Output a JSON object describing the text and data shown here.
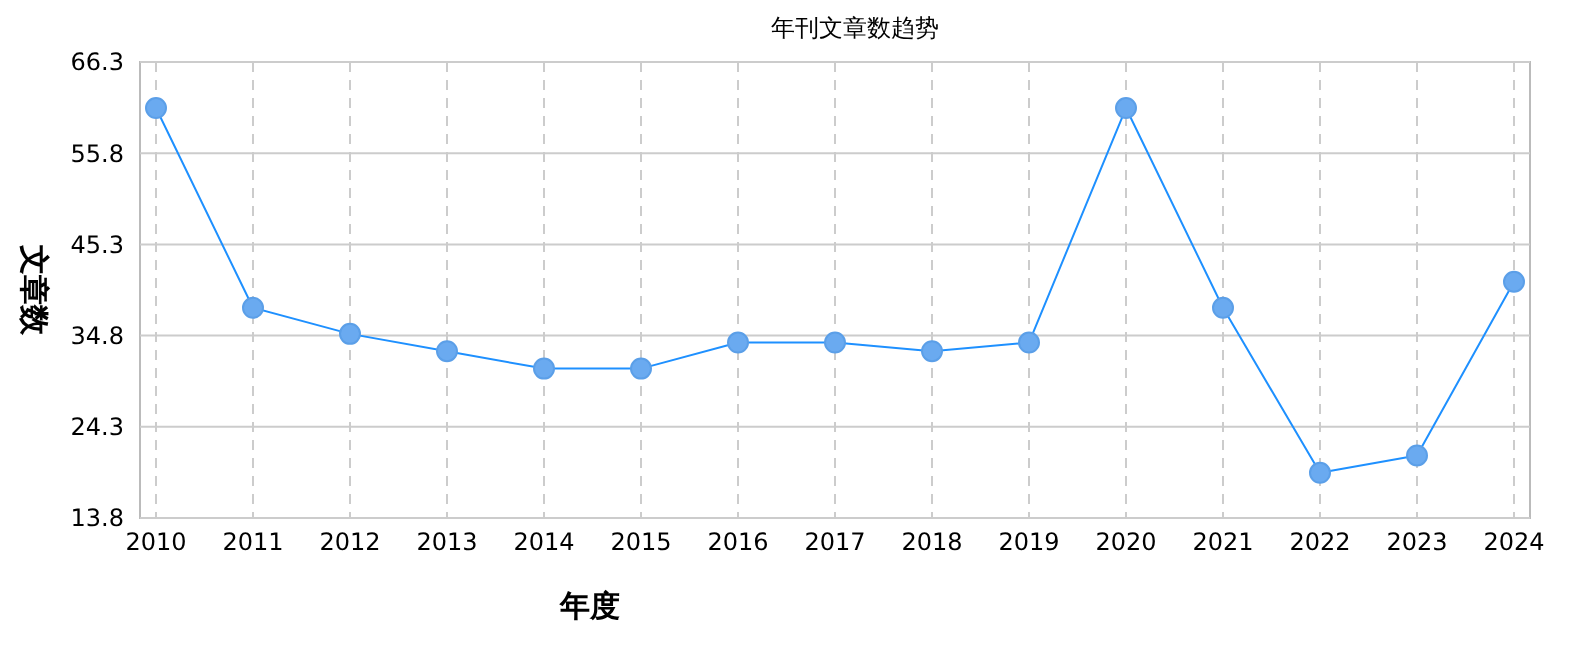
{
  "chart_data": {
    "type": "line",
    "title": "年刊文章数趋势",
    "xlabel": "年度",
    "ylabel": "文章数",
    "categories": [
      "2010",
      "2011",
      "2012",
      "2013",
      "2014",
      "2015",
      "2016",
      "2017",
      "2018",
      "2019",
      "2020",
      "2021",
      "2022",
      "2023",
      "2024"
    ],
    "series": [
      {
        "color": "#1e90ff",
        "values": [
          61,
          38,
          35,
          33,
          31,
          31,
          34,
          34,
          33,
          34,
          61,
          38,
          19,
          21,
          41
        ]
      }
    ],
    "ylim": [
      13.8,
      66.3
    ],
    "yticks": [
      13.8,
      24.3,
      34.8,
      45.3,
      55.8,
      66.3
    ],
    "grid": true,
    "marker": "circle",
    "line_style": "solid"
  }
}
